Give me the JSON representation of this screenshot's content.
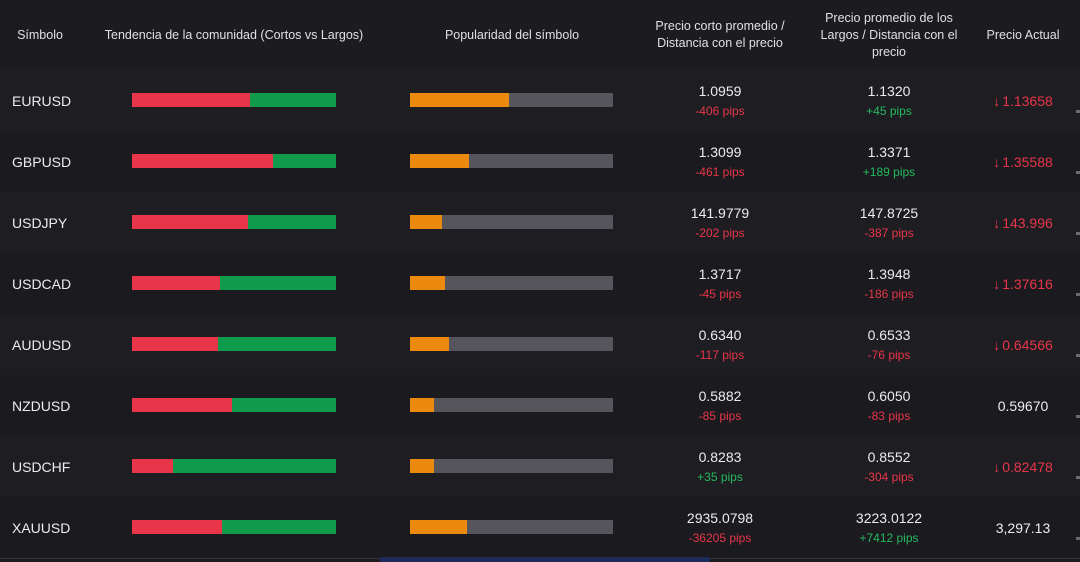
{
  "header": {
    "symbol": "Símbolo",
    "trend": "Tendencia de la comunidad (Cortos vs Largos)",
    "popularity": "Popularidad del símbolo",
    "short_avg": "Precio corto promedio / Distancia con el precio",
    "long_avg": "Precio promedio de los Largos / Distancia con el precio",
    "current": "Precio Actual"
  },
  "colors": {
    "short": "#e8354a",
    "long": "#0f9a4c",
    "popularity": "#ec8a10",
    "negative": "#e8354a",
    "positive": "#23b85e"
  },
  "rows": [
    {
      "symbol": "EURUSD",
      "short_pct": 58,
      "popularity": 49,
      "short_price": "1.0959",
      "short_pips": "-406 pips",
      "short_dir": "neg",
      "long_price": "1.1320",
      "long_pips": "+45 pips",
      "long_dir": "pos",
      "current": "1.13658",
      "current_arrow": "down-arrow-icon",
      "current_dir": "down"
    },
    {
      "symbol": "GBPUSD",
      "short_pct": 69,
      "popularity": 29,
      "short_price": "1.3099",
      "short_pips": "-461 pips",
      "short_dir": "neg",
      "long_price": "1.3371",
      "long_pips": "+189 pips",
      "long_dir": "pos",
      "current": "1.35588",
      "current_arrow": "down-arrow-icon",
      "current_dir": "down"
    },
    {
      "symbol": "USDJPY",
      "short_pct": 57,
      "popularity": 16,
      "short_price": "141.9779",
      "short_pips": "-202 pips",
      "short_dir": "neg",
      "long_price": "147.8725",
      "long_pips": "-387 pips",
      "long_dir": "neg",
      "current": "143.996",
      "current_arrow": "down-arrow-icon",
      "current_dir": "down"
    },
    {
      "symbol": "USDCAD",
      "short_pct": 43,
      "popularity": 17,
      "short_price": "1.3717",
      "short_pips": "-45 pips",
      "short_dir": "neg",
      "long_price": "1.3948",
      "long_pips": "-186 pips",
      "long_dir": "neg",
      "current": "1.37616",
      "current_arrow": "down-arrow-icon",
      "current_dir": "down"
    },
    {
      "symbol": "AUDUSD",
      "short_pct": 42,
      "popularity": 19,
      "short_price": "0.6340",
      "short_pips": "-117 pips",
      "short_dir": "neg",
      "long_price": "0.6533",
      "long_pips": "-76 pips",
      "long_dir": "neg",
      "current": "0.64566",
      "current_arrow": "down-arrow-icon",
      "current_dir": "down"
    },
    {
      "symbol": "NZDUSD",
      "short_pct": 49,
      "popularity": 12,
      "short_price": "0.5882",
      "short_pips": "-85 pips",
      "short_dir": "neg",
      "long_price": "0.6050",
      "long_pips": "-83 pips",
      "long_dir": "neg",
      "current": "0.59670",
      "current_arrow": "",
      "current_dir": "flat"
    },
    {
      "symbol": "USDCHF",
      "short_pct": 20,
      "popularity": 12,
      "short_price": "0.8283",
      "short_pips": "+35 pips",
      "short_dir": "pos",
      "long_price": "0.8552",
      "long_pips": "-304 pips",
      "long_dir": "neg",
      "current": "0.82478",
      "current_arrow": "down-arrow-icon",
      "current_dir": "down"
    },
    {
      "symbol": "XAUUSD",
      "short_pct": 44,
      "popularity": 28,
      "short_price": "2935.0798",
      "short_pips": "-36205 pips",
      "short_dir": "neg",
      "long_price": "3223.0122",
      "long_pips": "+7412 pips",
      "long_dir": "pos",
      "current": "3,297.13",
      "current_arrow": "",
      "current_dir": "flat"
    }
  ]
}
